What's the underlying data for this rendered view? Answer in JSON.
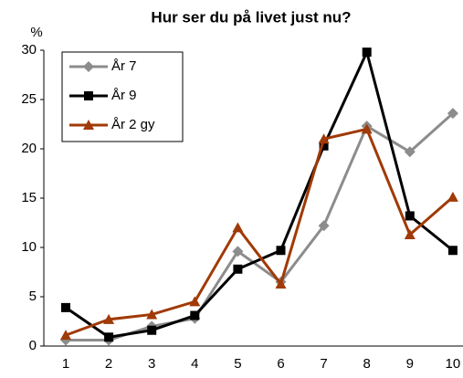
{
  "chart_data": {
    "type": "line",
    "title": "Hur ser du på livet just nu?",
    "y_label": "%",
    "categories": [
      "1",
      "2",
      "3",
      "4",
      "5",
      "6",
      "7",
      "8",
      "9",
      "10"
    ],
    "series": [
      {
        "name": "År 7",
        "color": "#8c8c8c",
        "marker": "diamond",
        "values": [
          0.6,
          0.6,
          2.0,
          2.8,
          9.6,
          6.5,
          12.2,
          22.3,
          19.7,
          23.6
        ]
      },
      {
        "name": "År 9",
        "color": "#000000",
        "marker": "square",
        "values": [
          3.9,
          0.9,
          1.6,
          3.1,
          7.8,
          9.7,
          20.3,
          29.8,
          13.2,
          9.7
        ]
      },
      {
        "name": "År 2 gy",
        "color": "#a03a06",
        "marker": "triangle",
        "values": [
          1.1,
          2.7,
          3.2,
          4.5,
          12.0,
          6.3,
          21.0,
          22.0,
          11.3,
          15.1
        ]
      }
    ],
    "ylim": [
      0,
      30
    ],
    "yticks": [
      0,
      5,
      10,
      15,
      20,
      25,
      30
    ],
    "grid": false,
    "legend": "upper left"
  }
}
